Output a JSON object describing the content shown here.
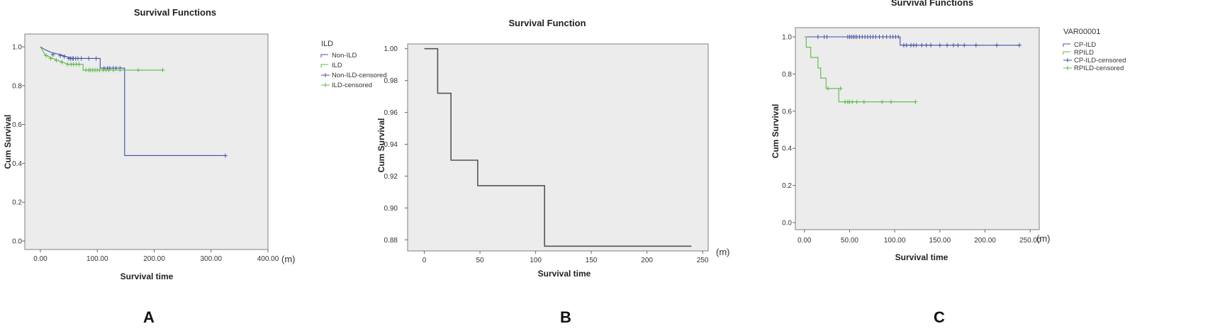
{
  "chart_data": [
    {
      "panel": "A",
      "type": "line",
      "step": true,
      "title": "Survival Functions",
      "xlabel": "Survival time",
      "ylabel": "Cum Survival",
      "x_unit": "(m)",
      "xlim": [
        0,
        400
      ],
      "ylim": [
        0,
        1.0
      ],
      "xticks": [
        "0.00",
        "100.00",
        "200.00",
        "300.00",
        "400.00"
      ],
      "yticks": [
        "0.0",
        "0.2",
        "0.4",
        "0.6",
        "0.8",
        "1.0"
      ],
      "legend_title": "ILD",
      "legend_position": "right",
      "background": "#ececec",
      "series": [
        {
          "name": "Non-ILD",
          "color": "#3f4fa8",
          "steps": [
            [
              0,
              1.0
            ],
            [
              5,
              0.99
            ],
            [
              12,
              0.98
            ],
            [
              20,
              0.97
            ],
            [
              35,
              0.96
            ],
            [
              45,
              0.95
            ],
            [
              55,
              0.94
            ],
            [
              105,
              0.94
            ],
            [
              105,
              0.89
            ],
            [
              148,
              0.89
            ],
            [
              148,
              0.44
            ],
            [
              325,
              0.44
            ]
          ],
          "censored": [
            [
              22,
              0.96
            ],
            [
              35,
              0.955
            ],
            [
              42,
              0.95
            ],
            [
              50,
              0.94
            ],
            [
              53,
              0.94
            ],
            [
              56,
              0.94
            ],
            [
              58,
              0.94
            ],
            [
              62,
              0.94
            ],
            [
              66,
              0.94
            ],
            [
              72,
              0.94
            ],
            [
              85,
              0.94
            ],
            [
              98,
              0.94
            ],
            [
              112,
              0.89
            ],
            [
              118,
              0.89
            ],
            [
              122,
              0.89
            ],
            [
              128,
              0.89
            ],
            [
              133,
              0.89
            ],
            [
              140,
              0.89
            ],
            [
              325,
              0.44
            ]
          ]
        },
        {
          "name": "ILD",
          "color": "#58b947",
          "steps": [
            [
              0,
              1.0
            ],
            [
              4,
              0.98
            ],
            [
              8,
              0.96
            ],
            [
              14,
              0.95
            ],
            [
              22,
              0.94
            ],
            [
              30,
              0.93
            ],
            [
              40,
              0.92
            ],
            [
              48,
              0.91
            ],
            [
              75,
              0.91
            ],
            [
              75,
              0.88
            ],
            [
              215,
              0.88
            ]
          ],
          "censored": [
            [
              10,
              0.955
            ],
            [
              18,
              0.94
            ],
            [
              28,
              0.93
            ],
            [
              38,
              0.92
            ],
            [
              48,
              0.91
            ],
            [
              54,
              0.91
            ],
            [
              58,
              0.91
            ],
            [
              63,
              0.91
            ],
            [
              68,
              0.91
            ],
            [
              80,
              0.88
            ],
            [
              85,
              0.88
            ],
            [
              88,
              0.88
            ],
            [
              92,
              0.88
            ],
            [
              96,
              0.88
            ],
            [
              100,
              0.88
            ],
            [
              104,
              0.88
            ],
            [
              110,
              0.88
            ],
            [
              115,
              0.88
            ],
            [
              120,
              0.88
            ],
            [
              128,
              0.88
            ],
            [
              140,
              0.88
            ],
            [
              172,
              0.88
            ],
            [
              215,
              0.88
            ]
          ]
        }
      ],
      "legend": [
        "Non-ILD",
        "ILD",
        "Non-ILD-censored",
        "ILD-censored"
      ]
    },
    {
      "panel": "B",
      "type": "line",
      "step": true,
      "title": "Survival Function",
      "xlabel": "Survival time",
      "ylabel": "Cum Survival",
      "x_unit": "(m)",
      "xlim": [
        -15,
        255
      ],
      "ylim": [
        0.873,
        1.003
      ],
      "xticks": [
        "0",
        "50",
        "100",
        "150",
        "200",
        "250"
      ],
      "yticks": [
        "0.88",
        "0.90",
        "0.92",
        "0.94",
        "0.96",
        "0.98",
        "1.00"
      ],
      "background": "#ececec",
      "series": [
        {
          "color": "#555555",
          "steps": [
            [
              0,
              1.0
            ],
            [
              12,
              1.0
            ],
            [
              12,
              0.972
            ],
            [
              24,
              0.972
            ],
            [
              24,
              0.93
            ],
            [
              48,
              0.93
            ],
            [
              48,
              0.914
            ],
            [
              108,
              0.914
            ],
            [
              108,
              0.876
            ],
            [
              240,
              0.876
            ]
          ]
        }
      ]
    },
    {
      "panel": "C",
      "type": "line",
      "step": true,
      "title": "Survival Functions",
      "xlabel": "Survival time",
      "ylabel": "Cum Survival",
      "x_unit": "(m)",
      "xlim": [
        -10,
        260
      ],
      "ylim": [
        0,
        1.0
      ],
      "xticks": [
        "0.00",
        "50.00",
        "100.00",
        "150.00",
        "200.00",
        "250.00"
      ],
      "yticks": [
        "0.0",
        "0.2",
        "0.4",
        "0.6",
        "0.8",
        "1.0"
      ],
      "legend_title": "VAR00001",
      "legend_position": "right",
      "background": "#ececec",
      "series": [
        {
          "name": "CP-ILD",
          "color": "#3f4fa8",
          "steps": [
            [
              0,
              1.0
            ],
            [
              106,
              1.0
            ],
            [
              106,
              0.955
            ],
            [
              238,
              0.955
            ]
          ],
          "censored": [
            [
              15,
              1.0
            ],
            [
              22,
              1.0
            ],
            [
              25,
              1.0
            ],
            [
              48,
              1.0
            ],
            [
              50,
              1.0
            ],
            [
              52,
              1.0
            ],
            [
              54,
              1.0
            ],
            [
              56,
              1.0
            ],
            [
              58,
              1.0
            ],
            [
              61,
              1.0
            ],
            [
              64,
              1.0
            ],
            [
              67,
              1.0
            ],
            [
              70,
              1.0
            ],
            [
              73,
              1.0
            ],
            [
              76,
              1.0
            ],
            [
              79,
              1.0
            ],
            [
              83,
              1.0
            ],
            [
              87,
              1.0
            ],
            [
              91,
              1.0
            ],
            [
              95,
              1.0
            ],
            [
              98,
              1.0
            ],
            [
              101,
              1.0
            ],
            [
              104,
              1.0
            ],
            [
              110,
              0.955
            ],
            [
              113,
              0.955
            ],
            [
              118,
              0.955
            ],
            [
              121,
              0.955
            ],
            [
              124,
              0.955
            ],
            [
              130,
              0.955
            ],
            [
              135,
              0.955
            ],
            [
              140,
              0.955
            ],
            [
              150,
              0.955
            ],
            [
              158,
              0.955
            ],
            [
              165,
              0.955
            ],
            [
              170,
              0.955
            ],
            [
              177,
              0.955
            ],
            [
              190,
              0.955
            ],
            [
              213,
              0.955
            ],
            [
              238,
              0.955
            ]
          ]
        },
        {
          "name": "RPILD",
          "color": "#58b947",
          "steps": [
            [
              0,
              1.0
            ],
            [
              2,
              1.0
            ],
            [
              2,
              0.944
            ],
            [
              7,
              0.944
            ],
            [
              7,
              0.889
            ],
            [
              15,
              0.889
            ],
            [
              15,
              0.833
            ],
            [
              18,
              0.833
            ],
            [
              18,
              0.778
            ],
            [
              24,
              0.778
            ],
            [
              24,
              0.722
            ],
            [
              38,
              0.722
            ],
            [
              38,
              0.65
            ],
            [
              123,
              0.65
            ]
          ],
          "censored": [
            [
              26,
              0.722
            ],
            [
              40,
              0.722
            ],
            [
              45,
              0.65
            ],
            [
              48,
              0.65
            ],
            [
              50,
              0.65
            ],
            [
              53,
              0.65
            ],
            [
              58,
              0.65
            ],
            [
              66,
              0.65
            ],
            [
              86,
              0.65
            ],
            [
              96,
              0.65
            ],
            [
              123,
              0.65
            ]
          ]
        }
      ],
      "legend": [
        "CP-ILD",
        "RPILD",
        "CP-ILD-censored",
        "RPILD-censored"
      ]
    }
  ]
}
